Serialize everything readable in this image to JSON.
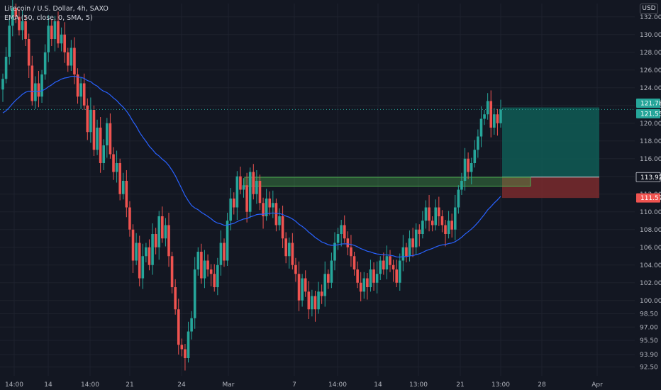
{
  "legend": {
    "symbol": "Litecoin / U.S. Dollar, 4h, SAXO",
    "indicator": "EMA (50, close, 0, SMA, 5)"
  },
  "currency_button": "USD",
  "colors": {
    "background": "#131722",
    "up": "#26a69a",
    "down": "#ef5350",
    "ema": "#2962ff",
    "target_zone": "#0f5c55",
    "stop_zone": "#7a2a2d",
    "zone_box": "#4caf50",
    "price_badge": "#26a69a",
    "stop_badge": "#ef5350"
  },
  "chart_data": {
    "type": "candlestick",
    "title": "Litecoin / U.S. Dollar, 4h, SAXO",
    "y_axis": {
      "range": [
        91.5,
        133.5
      ],
      "ticks": [
        "92.50",
        "93.90",
        "95.50",
        "97.00",
        "98.50",
        "100.00",
        "102.00",
        "104.00",
        "106.00",
        "108.00",
        "110.00",
        "112.00",
        "114.00",
        "116.00",
        "118.00",
        "120.00",
        "122.00",
        "124.00",
        "126.00",
        "128.00",
        "130.00",
        "132.00"
      ]
    },
    "x_axis": {
      "ticks": [
        "14:00",
        "14",
        "14:00",
        "21",
        "24",
        "Mar",
        "7",
        "14:00",
        "14",
        "13:00",
        "21",
        "13:00",
        "28",
        "Apr"
      ]
    },
    "price_labels": [
      {
        "text": "121.78",
        "style": "target"
      },
      {
        "text": "121.55",
        "style": "price"
      },
      {
        "text": "113.92",
        "style": "entry"
      },
      {
        "text": "111.57",
        "style": "stop"
      }
    ],
    "position": {
      "entry": 113.92,
      "target": 121.78,
      "stop": 111.57
    },
    "highlight_zone": {
      "low": 112.9,
      "high": 113.9
    },
    "last_price": 121.55,
    "closes": [
      125.0,
      127.5,
      131.0,
      133.0,
      132.0,
      130.5,
      131.5,
      129.5,
      126.5,
      122.5,
      124.5,
      123.0,
      125.5,
      128.0,
      131.0,
      129.5,
      131.5,
      129.0,
      130.0,
      128.0,
      126.5,
      128.5,
      125.5,
      123.0,
      124.5,
      122.0,
      119.0,
      121.5,
      117.0,
      119.5,
      115.5,
      117.5,
      120.0,
      116.5,
      114.5,
      115.5,
      112.0,
      113.5,
      110.5,
      108.0,
      104.5,
      106.5,
      102.5,
      105.0,
      106.0,
      104.0,
      107.5,
      106.0,
      109.5,
      107.0,
      108.5,
      105.0,
      101.5,
      99.0,
      95.0,
      94.5,
      93.5,
      96.5,
      98.0,
      103.5,
      105.5,
      102.5,
      104.5,
      103.5,
      103.0,
      101.5,
      104.0,
      106.5,
      104.5,
      109.0,
      111.5,
      110.5,
      114.0,
      112.5,
      113.0,
      110.0,
      114.5,
      112.0,
      113.5,
      111.0,
      109.5,
      111.5,
      110.5,
      111.0,
      108.5,
      109.5,
      107.0,
      105.0,
      106.5,
      104.0,
      103.0,
      100.0,
      102.5,
      101.0,
      99.0,
      100.5,
      99.0,
      101.0,
      100.5,
      103.0,
      102.0,
      104.5,
      106.5,
      107.5,
      108.5,
      107.0,
      106.0,
      105.0,
      103.5,
      102.0,
      101.0,
      102.5,
      101.5,
      103.5,
      102.0,
      103.0,
      104.5,
      103.5,
      105.0,
      104.0,
      103.5,
      102.0,
      104.5,
      106.0,
      105.0,
      107.0,
      106.0,
      108.0,
      107.5,
      109.0,
      110.5,
      109.0,
      108.5,
      110.5,
      109.5,
      108.5,
      107.5,
      109.0,
      108.0,
      110.5,
      112.5,
      113.5,
      116.0,
      114.5,
      115.5,
      117.0,
      118.5,
      120.5,
      121.0,
      122.5,
      119.5,
      121.0,
      120.0,
      121.55
    ]
  }
}
